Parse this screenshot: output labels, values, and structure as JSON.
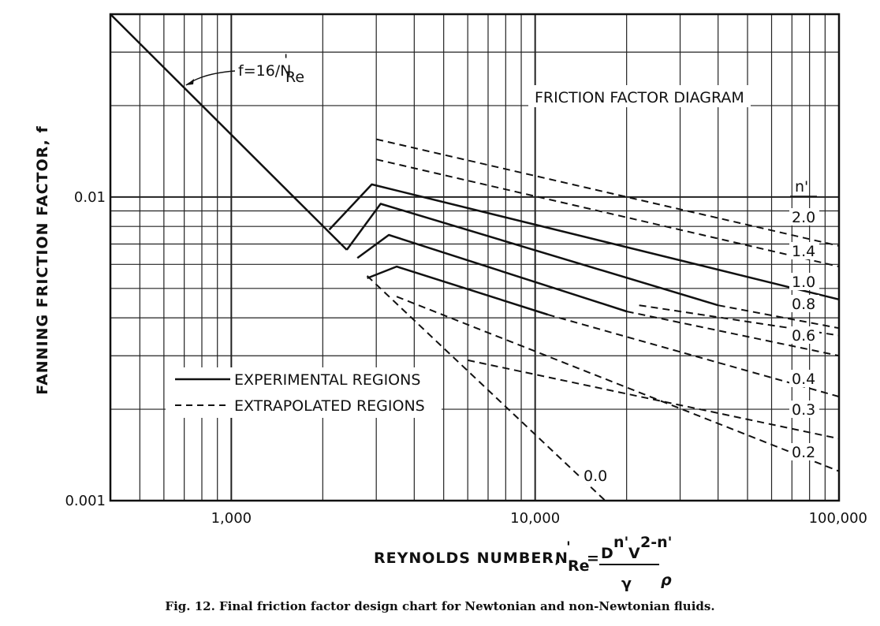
{
  "caption": "Fig. 12. Final friction factor design chart for Newtonian and non-Newtonian fluids.",
  "chart_data": {
    "type": "line",
    "title": "FRICTION FACTOR DIAGRAM",
    "xlabel": "REYNOLDS NUMBER,",
    "ylabel": "FANNING FRICTION FACTOR, f",
    "xscale": "log",
    "yscale": "log",
    "xlim": [
      400,
      100000
    ],
    "ylim": [
      0.001,
      0.04
    ],
    "x_ticks": [
      {
        "value": 1000,
        "label": "1,000"
      },
      {
        "value": 10000,
        "label": "10,000"
      },
      {
        "value": 100000,
        "label": "100,000"
      }
    ],
    "y_ticks": [
      {
        "value": 0.01,
        "label": "0.01"
      },
      {
        "value": 0.001,
        "label": "0.001"
      }
    ],
    "grid": true,
    "laminar": {
      "label": "f=16/N",
      "label_sup": "'",
      "label_sub": "Re",
      "points": [
        [
          400,
          0.04
        ],
        [
          2400,
          0.0067
        ]
      ]
    },
    "legend_header": "n'",
    "legend": {
      "experimental": "EXPERIMENTAL REGIONS",
      "extrapolated": "EXTRAPOLATED REGIONS",
      "placement": "lower-left"
    },
    "series": [
      {
        "name": "2.0",
        "experimental": [
          [
            2100,
            0.0078
          ],
          [
            2900,
            0.011
          ],
          [
            100000,
            0.0046
          ]
        ],
        "extrapolated": [
          [
            3000,
            0.0155
          ],
          [
            100000,
            0.0069
          ]
        ]
      },
      {
        "name": "1.4",
        "experimental": [],
        "extrapolated": [
          [
            3000,
            0.0133
          ],
          [
            100000,
            0.0059
          ]
        ]
      },
      {
        "name": "1.0",
        "experimental": [
          [
            2400,
            0.0067
          ],
          [
            3100,
            0.0095
          ],
          [
            40000,
            0.0044
          ]
        ],
        "extrapolated": [
          [
            40000,
            0.0044
          ],
          [
            100000,
            0.0037
          ]
        ]
      },
      {
        "name": "0.8",
        "experimental": [],
        "extrapolated": [
          [
            22000,
            0.0044
          ],
          [
            100000,
            0.0035
          ]
        ]
      },
      {
        "name": "0.6",
        "experimental": [
          [
            2600,
            0.0063
          ],
          [
            3300,
            0.0075
          ],
          [
            20000,
            0.0042
          ]
        ],
        "extrapolated": [
          [
            20000,
            0.0042
          ],
          [
            100000,
            0.003
          ]
        ]
      },
      {
        "name": "0.4",
        "experimental": [
          [
            2800,
            0.0054
          ],
          [
            3500,
            0.0059
          ],
          [
            11000,
            0.0041
          ]
        ],
        "extrapolated": [
          [
            11000,
            0.0041
          ],
          [
            100000,
            0.0022
          ]
        ]
      },
      {
        "name": "0.3",
        "experimental": [],
        "extrapolated": [
          [
            6000,
            0.0029
          ],
          [
            100000,
            0.0016
          ]
        ]
      },
      {
        "name": "0.2",
        "experimental": [],
        "extrapolated": [
          [
            3500,
            0.0047
          ],
          [
            100000,
            0.00125
          ]
        ]
      },
      {
        "name": "0.0",
        "experimental": [],
        "extrapolated": [
          [
            2800,
            0.0055
          ],
          [
            17000,
            0.001
          ]
        ]
      }
    ]
  },
  "xlabel_formula": {
    "n_main": "N",
    "n_sup": "'",
    "n_sub": "Re",
    "equals": "=",
    "numerator": "D",
    "num_exp1": "n'",
    "num_v": "V",
    "num_exp2": "2-n'",
    "denominator": "γ",
    "rho": "ρ"
  },
  "series_labels": {
    "2.0": "2.0",
    "1.4": "1.4",
    "1.0": "1.0",
    "0.8": "0.8",
    "0.6": "0.6",
    "0.4": "0.4",
    "0.3": "0.3",
    "0.2": "0.2",
    "0.0": "0.0"
  }
}
